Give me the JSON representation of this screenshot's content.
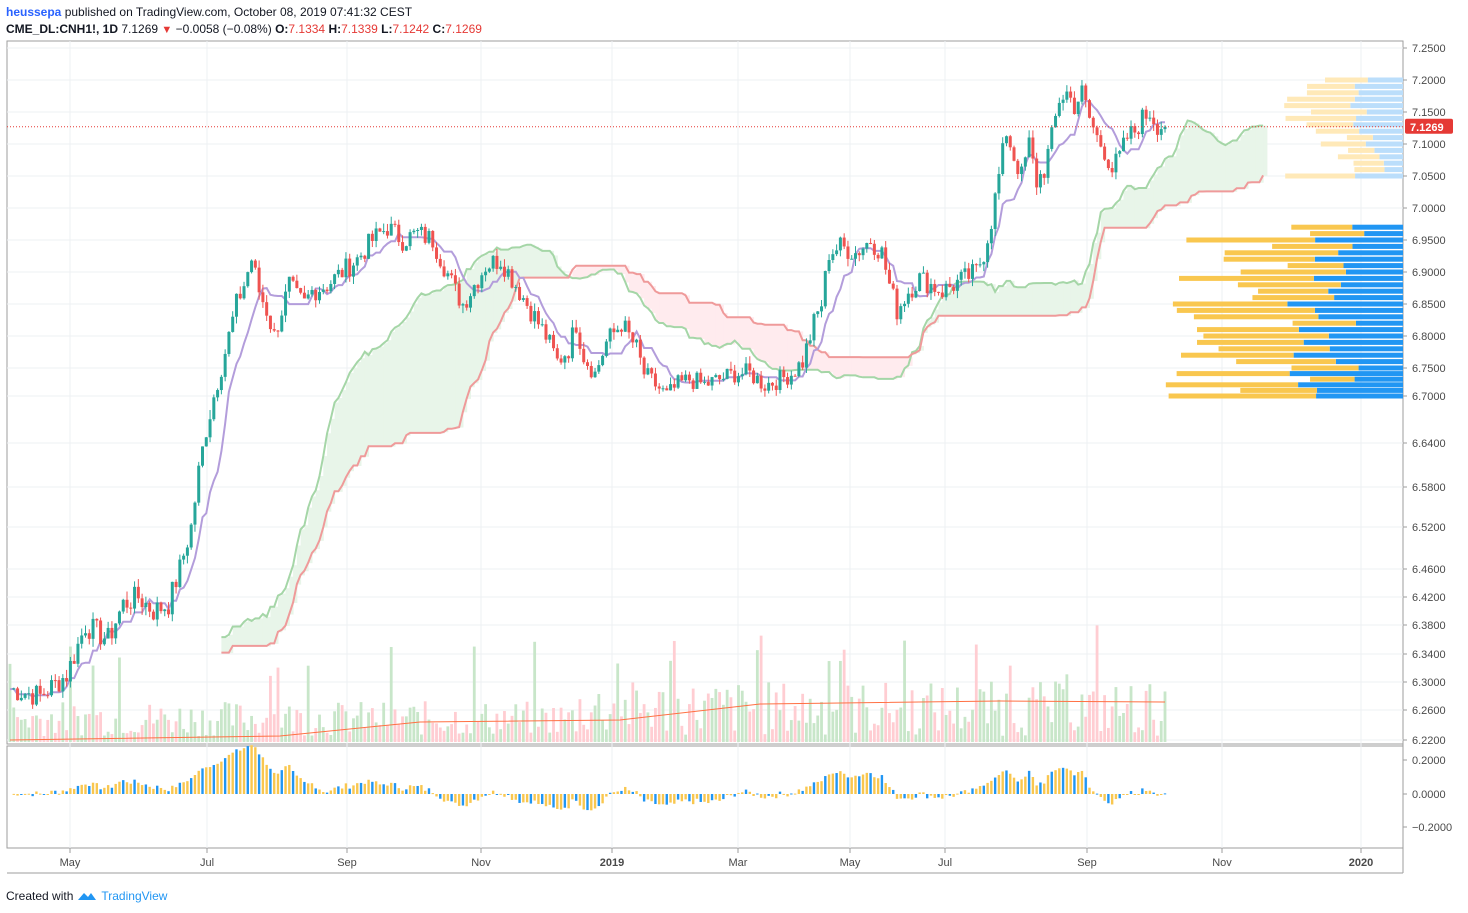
{
  "header": {
    "username": "heussepa",
    "published": "published on TradingView.com, October 08, 2019 07:41:32 CEST",
    "symbol": "CME_DL:CNH1!, 1D",
    "last": "7.1269",
    "change": "−0.0058 (−0.08%)",
    "o_label": "O:",
    "o_val": "7.1334",
    "h_label": "H:",
    "h_val": "7.1339",
    "l_label": "L:",
    "l_val": "7.1242",
    "c_label": "C:",
    "c_val": "7.1269"
  },
  "footer": {
    "created_with": "Created with",
    "brand": "TradingView"
  },
  "colors": {
    "up": "#26a69a",
    "down": "#ef5350",
    "kijun": "#ef9a9a",
    "tenkan": "#b39ddb",
    "span_a": "#a5d6a7",
    "cloud_green": "#e8f5e9",
    "cloud_red": "#ffebee",
    "volume_profile_up": "#2196f3",
    "volume_profile_down": "#f9c74f",
    "price_tag": "#e53935"
  },
  "chart_data": {
    "type": "candlestick",
    "symbol": "CME_DL:CNH1!",
    "interval": "1D",
    "x_labels": [
      "May",
      "Jul",
      "Sep",
      "Nov",
      "2019",
      "Mar",
      "May",
      "Jul",
      "Sep",
      "Nov",
      "2020"
    ],
    "y_ticks": [
      "7.2500",
      "7.2000",
      "7.1500",
      "7.1000",
      "7.0500",
      "7.0000",
      "6.9500",
      "6.9000",
      "6.8500",
      "6.8000",
      "6.7500",
      "6.7000",
      "6.6400",
      "6.5800",
      "6.5200",
      "6.4600",
      "6.4200",
      "6.3800",
      "6.3400",
      "6.3000",
      "6.2600",
      "6.2200"
    ],
    "last_price_tag": "7.1269",
    "ylim": [
      6.22,
      7.25
    ],
    "close_path": [
      [
        0,
        6.29
      ],
      [
        8,
        6.28
      ],
      [
        15,
        6.31
      ],
      [
        20,
        6.38
      ],
      [
        26,
        6.36
      ],
      [
        30,
        6.41
      ],
      [
        34,
        6.42
      ],
      [
        38,
        6.4
      ],
      [
        42,
        6.41
      ],
      [
        45,
        6.46
      ],
      [
        48,
        6.52
      ],
      [
        50,
        6.6
      ],
      [
        52,
        6.66
      ],
      [
        54,
        6.7
      ],
      [
        56,
        6.75
      ],
      [
        58,
        6.8
      ],
      [
        60,
        6.85
      ],
      [
        62,
        6.88
      ],
      [
        64,
        6.92
      ],
      [
        66,
        6.87
      ],
      [
        68,
        6.84
      ],
      [
        70,
        6.8
      ],
      [
        72,
        6.84
      ],
      [
        74,
        6.88
      ],
      [
        76,
        6.86
      ],
      [
        78,
        6.85
      ],
      [
        80,
        6.87
      ],
      [
        84,
        6.88
      ],
      [
        88,
        6.9
      ],
      [
        92,
        6.92
      ],
      [
        96,
        6.95
      ],
      [
        100,
        6.97
      ],
      [
        104,
        6.95
      ],
      [
        108,
        6.96
      ],
      [
        112,
        6.95
      ],
      [
        115,
        6.91
      ],
      [
        118,
        6.87
      ],
      [
        120,
        6.85
      ],
      [
        123,
        6.88
      ],
      [
        126,
        6.91
      ],
      [
        130,
        6.92
      ],
      [
        134,
        6.88
      ],
      [
        138,
        6.84
      ],
      [
        142,
        6.8
      ],
      [
        145,
        6.76
      ],
      [
        148,
        6.78
      ],
      [
        150,
        6.82
      ],
      [
        152,
        6.77
      ],
      [
        155,
        6.74
      ],
      [
        158,
        6.79
      ],
      [
        162,
        6.82
      ],
      [
        166,
        6.78
      ],
      [
        168,
        6.74
      ],
      [
        171,
        6.72
      ],
      [
        174,
        6.7
      ],
      [
        177,
        6.72
      ],
      [
        180,
        6.73
      ],
      [
        184,
        6.72
      ],
      [
        188,
        6.73
      ],
      [
        192,
        6.74
      ],
      [
        196,
        6.74
      ],
      [
        200,
        6.72
      ],
      [
        204,
        6.73
      ],
      [
        207,
        6.74
      ],
      [
        210,
        6.76
      ],
      [
        213,
        6.82
      ],
      [
        215,
        6.85
      ],
      [
        217,
        6.93
      ],
      [
        220,
        6.94
      ],
      [
        224,
        6.93
      ],
      [
        228,
        6.95
      ],
      [
        231,
        6.93
      ],
      [
        233,
        6.88
      ],
      [
        235,
        6.84
      ],
      [
        238,
        6.87
      ],
      [
        241,
        6.89
      ],
      [
        244,
        6.88
      ],
      [
        247,
        6.87
      ],
      [
        250,
        6.88
      ],
      [
        253,
        6.89
      ],
      [
        256,
        6.9
      ],
      [
        258,
        6.93
      ],
      [
        260,
        6.98
      ],
      [
        262,
        7.05
      ],
      [
        264,
        7.12
      ],
      [
        266,
        7.08
      ],
      [
        268,
        7.05
      ],
      [
        270,
        7.1
      ],
      [
        272,
        7.04
      ],
      [
        274,
        7.06
      ],
      [
        276,
        7.11
      ],
      [
        278,
        7.17
      ],
      [
        280,
        7.18
      ],
      [
        282,
        7.16
      ],
      [
        284,
        7.18
      ],
      [
        286,
        7.14
      ],
      [
        288,
        7.11
      ],
      [
        290,
        7.09
      ],
      [
        292,
        7.06
      ],
      [
        294,
        7.08
      ],
      [
        296,
        7.11
      ],
      [
        298,
        7.12
      ],
      [
        300,
        7.14
      ],
      [
        302,
        7.15
      ],
      [
        304,
        7.13
      ],
      [
        306,
        7.1269
      ]
    ],
    "oscillator": {
      "y_ticks": [
        "0.2000",
        "0.0000",
        "−0.2000"
      ],
      "ylim": [
        -0.32,
        0.26
      ]
    }
  }
}
